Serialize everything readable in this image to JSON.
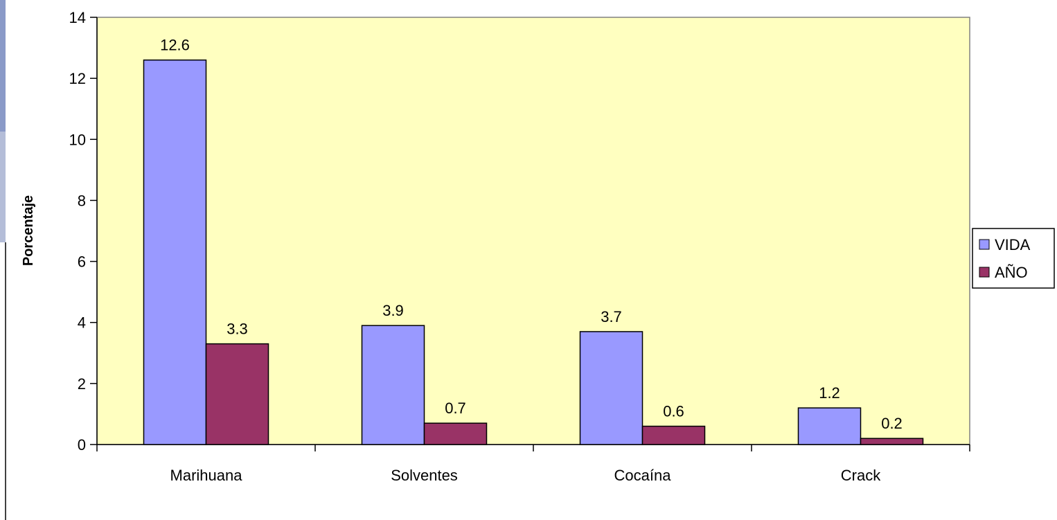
{
  "chart_data": {
    "type": "bar",
    "title": "",
    "xlabel": "",
    "ylabel": "Porcentaje",
    "categories": [
      "Marihuana",
      "Solventes",
      "Cocaína",
      "Crack"
    ],
    "series": [
      {
        "name": "VIDA",
        "values": [
          12.6,
          3.9,
          3.7,
          1.2
        ],
        "color": "#9999ff"
      },
      {
        "name": "AÑO",
        "values": [
          3.3,
          0.7,
          0.6,
          0.2
        ],
        "color": "#993366"
      }
    ],
    "data_labels": [
      [
        "12.6",
        "3.9",
        "3.7",
        "1.2"
      ],
      [
        "3.3",
        "0.7",
        "0.6",
        "0.2"
      ]
    ],
    "yticks": [
      "0",
      "2",
      "4",
      "6",
      "8",
      "10",
      "12",
      "14"
    ],
    "ylim": [
      0,
      14
    ],
    "grid": false,
    "legend_position": "right",
    "plot_background": "#ffffc0"
  }
}
